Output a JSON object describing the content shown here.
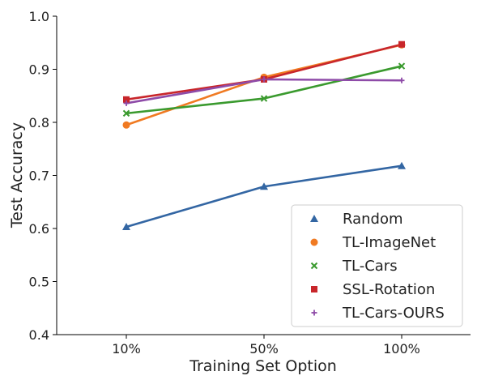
{
  "chart_data": {
    "type": "line",
    "title": "",
    "xlabel": "Training Set Option",
    "ylabel": "Test Accuracy",
    "categories": [
      "10%",
      "50%",
      "100%"
    ],
    "ylim": [
      0.4,
      1.0
    ],
    "yticks": [
      "0.4",
      "0.5",
      "0.6",
      "0.7",
      "0.8",
      "0.9",
      "1.0"
    ],
    "grid": false,
    "legend_position": "bottom-right",
    "series": [
      {
        "name": "Random",
        "values": [
          0.603,
          0.679,
          0.718
        ],
        "color": "#3366a3",
        "marker": "triangle"
      },
      {
        "name": "TL-ImageNet",
        "values": [
          0.795,
          0.885,
          0.946
        ],
        "color": "#f07a22",
        "marker": "circle"
      },
      {
        "name": "TL-Cars",
        "values": [
          0.817,
          0.845,
          0.906
        ],
        "color": "#3a9a2e",
        "marker": "x"
      },
      {
        "name": "SSL-Rotation",
        "values": [
          0.843,
          0.881,
          0.947
        ],
        "color": "#c8262b",
        "marker": "square"
      },
      {
        "name": "TL-Cars-OURS",
        "values": [
          0.836,
          0.881,
          0.879
        ],
        "color": "#8e4ba8",
        "marker": "plus"
      }
    ]
  }
}
